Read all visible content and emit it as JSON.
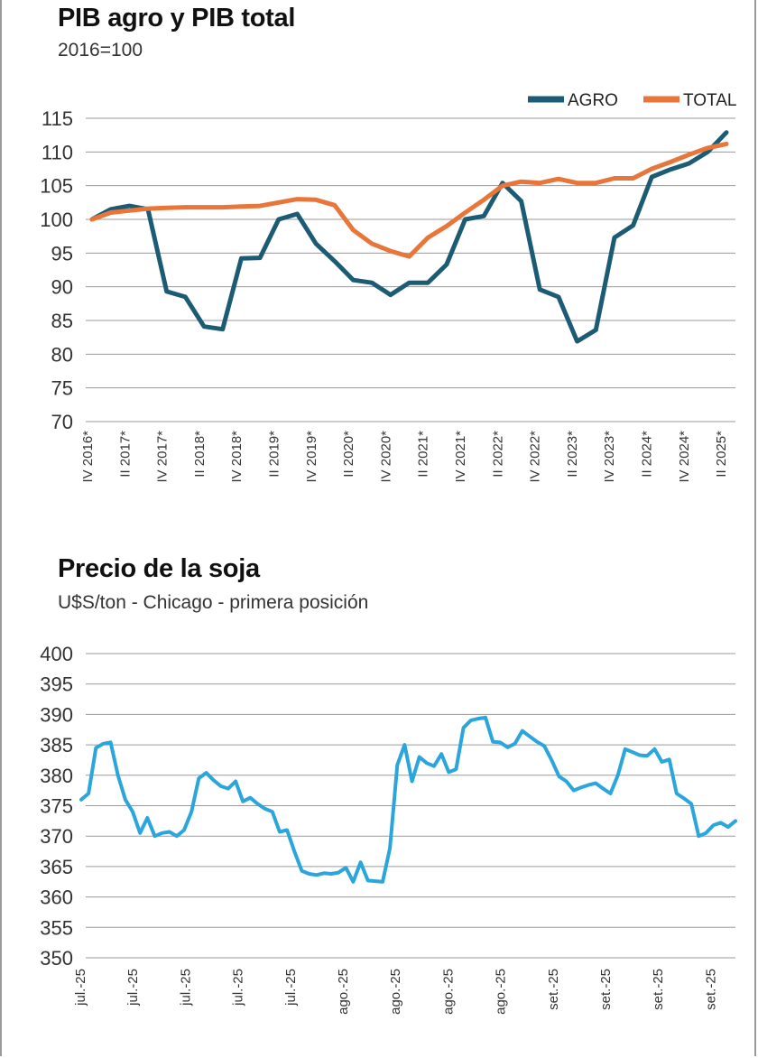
{
  "chart_data": [
    {
      "type": "line",
      "title": "PIB agro y PIB total",
      "subtitle": "2016=100",
      "ylim": [
        70,
        115
      ],
      "yticks": [
        70,
        75,
        80,
        85,
        90,
        95,
        100,
        105,
        110,
        115
      ],
      "tick_labels": [
        "IV 2016*",
        "II 2017*",
        "IV 2017*",
        "II 2018*",
        "IV 2018*",
        "II 2019*",
        "IV 2019*",
        "II 2020*",
        "IV 2020*",
        "II 2021*",
        "IV 2021*",
        "II 2022*",
        "IV 2022*",
        "II 2023*",
        "IV 2023*",
        "II 2024*",
        "IV 2024*",
        "II 2025*"
      ],
      "legend": "top-right",
      "series": [
        {
          "name": "AGRO",
          "color": "#1c5b74",
          "values": [
            100,
            101.5,
            102,
            101.5,
            89.3,
            88.5,
            84.1,
            83.7,
            94.2,
            94.3,
            100,
            100.8,
            96.4,
            93.8,
            91,
            90.6,
            88.8,
            90.6,
            90.6,
            93.3,
            100,
            100.5,
            105.4,
            102.7,
            89.6,
            88.5,
            81.9,
            83.6,
            97.3,
            99.1,
            106.3,
            107.4,
            108.3,
            110,
            112.9
          ]
        },
        {
          "name": "TOTAL",
          "color": "#e8763a",
          "values": [
            100,
            101,
            101.3,
            101.6,
            101.7,
            101.8,
            101.8,
            101.8,
            101.9,
            102,
            102.5,
            103,
            102.9,
            102.1,
            98.4,
            96.4,
            95.3,
            94.5,
            97.3,
            99,
            101,
            102.9,
            105,
            105.6,
            105.4,
            106,
            105.4,
            105.4,
            106.1,
            106.1,
            107.5,
            108.5,
            109.6,
            110.6,
            111.2
          ]
        }
      ]
    },
    {
      "type": "line",
      "title": "Precio de la soja",
      "subtitle": "U$S/ton - Chicago - primera posición",
      "ylim": [
        350,
        400
      ],
      "yticks": [
        350,
        355,
        360,
        365,
        370,
        375,
        380,
        385,
        390,
        395,
        400
      ],
      "tick_labels": [
        "jul.-25",
        "jul.-25",
        "jul.-25",
        "jul.-25",
        "jul.-25",
        "ago.-25",
        "ago.-25",
        "ago.-25",
        "ago.-25",
        "set.-25",
        "set.-25",
        "set.-25",
        "set.-25"
      ],
      "series": [
        {
          "name": "Soja",
          "color": "#2ba6dc",
          "values": [
            376,
            377,
            384.5,
            385.2,
            385.4,
            380,
            376,
            374,
            370.5,
            373,
            370,
            370.5,
            370.7,
            370,
            371,
            374,
            379.5,
            380.4,
            379.2,
            378.2,
            377.8,
            379,
            375.7,
            376.3,
            375.3,
            374.5,
            374,
            370.7,
            371,
            367.5,
            364.3,
            363.8,
            363.6,
            363.9,
            363.8,
            364,
            364.8,
            362.5,
            365.7,
            362.7,
            362.6,
            362.5,
            368,
            381.7,
            385,
            379,
            383,
            382,
            381.5,
            383.5,
            380.5,
            381,
            387.8,
            389,
            389.3,
            389.5,
            385.5,
            385.4,
            384.6,
            385.2,
            387.3,
            386.4,
            385.5,
            384.8,
            382.5,
            379.8,
            379,
            377.5,
            378,
            378.4,
            378.7,
            377.8,
            377,
            380,
            384.3,
            383.8,
            383.3,
            383.2,
            384.3,
            382.2,
            382.6,
            377,
            376.2,
            375.3,
            370,
            370.5,
            371.8,
            372.2,
            371.5,
            372.5
          ]
        }
      ]
    }
  ]
}
